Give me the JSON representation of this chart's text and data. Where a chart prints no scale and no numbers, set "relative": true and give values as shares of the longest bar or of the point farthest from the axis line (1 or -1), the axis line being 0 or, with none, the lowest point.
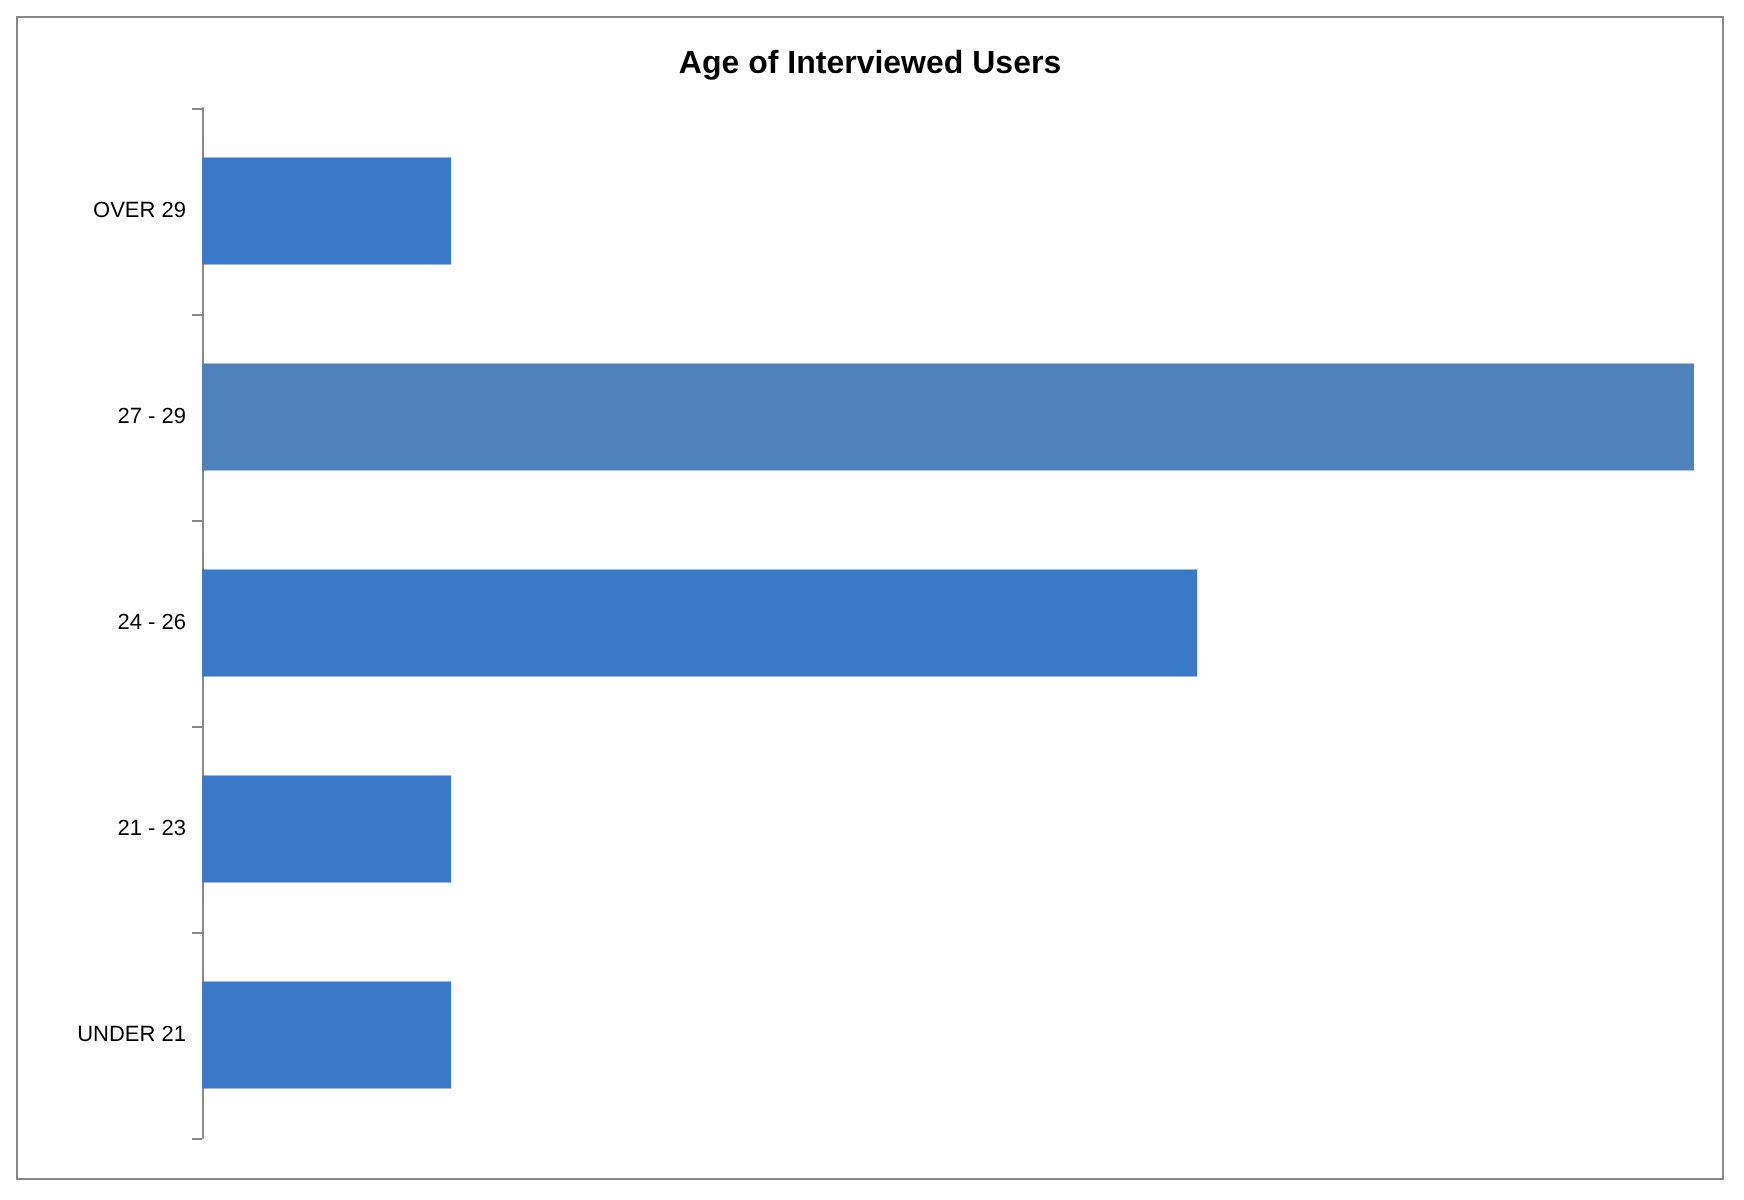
{
  "chart_data": {
    "type": "bar",
    "title": "Age of Interviewed Users",
    "orientation": "horizontal",
    "relative": true,
    "categories": [
      "OVER 29",
      "27 - 29",
      "24 - 26",
      "21 - 23",
      "UNDER 21"
    ],
    "values": [
      0.167,
      1,
      0.667,
      0.167,
      0.167
    ],
    "colors": [
      "#3a78c8",
      "#4f81bd",
      "#3a78c8",
      "#3a78c8",
      "#3a78c8"
    ]
  }
}
